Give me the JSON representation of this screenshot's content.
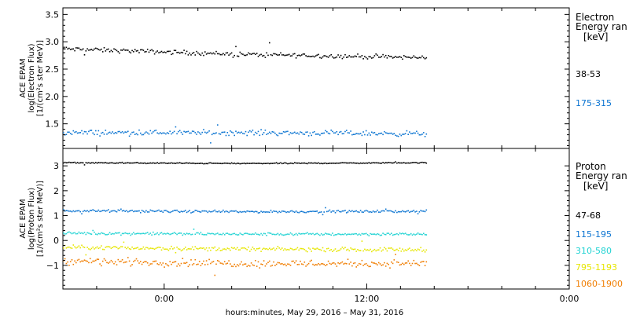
{
  "chart_data": [
    {
      "type": "scatter",
      "panel": "electron",
      "ylabel_lines": [
        "ACE EPAM",
        "log(Electron Flux)",
        "[1/(cm²s ster MeV)]"
      ],
      "ylim": [
        1.05,
        3.62
      ],
      "yticks": [
        "1.5",
        "2.0",
        "2.5",
        "3.0",
        "3.5"
      ],
      "yticks_values": [
        1.5,
        2.0,
        2.5,
        3.0,
        3.5
      ],
      "legend_title": [
        "Electron",
        "Energy ran"
      ],
      "legend_unit": "[keV]",
      "series": [
        {
          "name": "38-53",
          "color": "#000000",
          "level": 2.8,
          "trend": [
            2.88,
            2.78,
            2.72
          ],
          "noise": 0.06
        },
        {
          "name": "175-315",
          "color": "#0b74d1",
          "level": 1.35,
          "trend": [
            1.35,
            1.35,
            1.33
          ],
          "noise": 0.07
        }
      ]
    },
    {
      "type": "scatter",
      "panel": "proton",
      "ylabel_lines": [
        "ACE EPAM",
        "log(Proton Flux)",
        "[1/(cm²s ster MeV)]"
      ],
      "ylim": [
        -1.95,
        3.7
      ],
      "yticks": [
        "−1",
        "0",
        "1",
        "2",
        "3"
      ],
      "yticks_values": [
        -1,
        0,
        1,
        2,
        3
      ],
      "legend_title": [
        "Proton",
        "Energy ran"
      ],
      "legend_unit": "[keV]",
      "series": [
        {
          "name": "47-68",
          "color": "#000000",
          "level": 3.15,
          "trend": [
            3.15,
            3.12,
            3.15
          ],
          "noise": 0.03
        },
        {
          "name": "115-195",
          "color": "#0b74d1",
          "level": 1.2,
          "trend": [
            1.22,
            1.18,
            1.2
          ],
          "noise": 0.07
        },
        {
          "name": "310-580",
          "color": "#22d3d3",
          "level": 0.3,
          "trend": [
            0.32,
            0.28,
            0.28
          ],
          "noise": 0.08
        },
        {
          "name": "795-1193",
          "color": "#e6e600",
          "level": -0.3,
          "trend": [
            -0.25,
            -0.32,
            -0.35
          ],
          "noise": 0.12
        },
        {
          "name": "1060-1900",
          "color": "#f07d00",
          "level": -0.85,
          "trend": [
            -0.8,
            -0.9,
            -0.9
          ],
          "noise": 0.22
        }
      ]
    }
  ],
  "x_axis": {
    "title": "hours:minutes, May 29, 2016 – May 31, 2016",
    "tick_labels": [
      "0:00",
      "12:00",
      "0:00"
    ],
    "tick_hours": [
      0,
      12,
      24
    ],
    "range_hours": [
      -6,
      24
    ],
    "data_end_hours": 15.5
  }
}
